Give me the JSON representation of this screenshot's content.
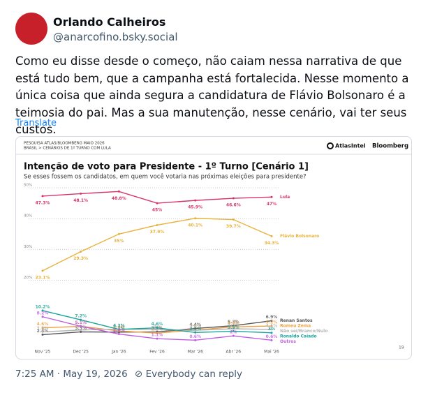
{
  "post": {
    "author": "Orlando Calheiros",
    "handle": "@anarcofino.bsky.social",
    "text": "Como eu disse desde o começo, não caiam nessa narrativa de que está tudo bem, que a campanha está fortalecida. Nesse momento a única coisa que ainda segura a candidatura de Flávio Bolsonaro é a teimosia do pai. Mas a sua manutenção, nesse cenário, vai ter seus custos.",
    "translate": "Translate",
    "timestamp": "7:25 AM · May 19, 2026",
    "reply_setting": "Everybody can reply"
  },
  "card": {
    "kicker": "PESQUISA ATLAS/BLOOMBERG MAIO 2026",
    "breadcrumb": "BRASIL > CENÁRIOS DE 1º TURNO COM LULA",
    "brand_1": "AtlasIntel",
    "brand_2": "Bloomberg",
    "page_number": "19"
  },
  "chart_data": {
    "type": "line",
    "title": "Intenção de voto para Presidente - 1º Turno [Cenário 1]",
    "subtitle": "Se esses fossem os candidatos, em quem você votaria nas próximas eleições para presidente?",
    "categories": [
      "Nov '25",
      "Dez '25",
      "Jan '26",
      "Fev '26",
      "Mar '26",
      "Abr '26",
      "Mai '26"
    ],
    "ylim": [
      0,
      50
    ],
    "yticks": [
      {
        "value": 20,
        "label": "20%"
      },
      {
        "value": 30,
        "label": "30%"
      },
      {
        "value": 40,
        "label": "40%"
      },
      {
        "value": 50,
        "label": "50%"
      }
    ],
    "grid": true,
    "series": [
      {
        "name": "Lula",
        "color": "#d6336c",
        "values": [
          47.3,
          48.1,
          48.8,
          45,
          45.9,
          46.6,
          47
        ],
        "value_labels": [
          "47.3%",
          "48.1%",
          "48.8%",
          "45%",
          "45.9%",
          "46.6%",
          "47%"
        ]
      },
      {
        "name": "Flávio Bolsonaro",
        "color": "#e8b23a",
        "values": [
          23.1,
          29.3,
          35,
          37.9,
          40.1,
          39.7,
          34.3
        ],
        "value_labels": [
          "23.1%",
          "29.3%",
          "35%",
          "37.9%",
          "40.1%",
          "39.7%",
          "34.3%"
        ]
      },
      {
        "name": "Renan Santos",
        "color": "#555555",
        "values": [
          2.4,
          3.3,
          3.2,
          3.3,
          4.4,
          5.3,
          6.9
        ],
        "value_labels": [
          "2.4%",
          "3.3%",
          "3.2%",
          "3.3%",
          "4.4%",
          "5.3%",
          "6.9%"
        ]
      },
      {
        "name": "Romeu Zema",
        "color": "#f0a040",
        "values": [
          4.6,
          5.1,
          3.6,
          2.9,
          3.9,
          4.9,
          5.2
        ],
        "value_labels": [
          "4.6%",
          "5.1%",
          "3.6%",
          "2.9%",
          "3.9%",
          "4.9%",
          "5.2%"
        ]
      },
      {
        "name": "Não sei/Branco/Nulo",
        "color": "#b5b5b5",
        "values": [
          3.3,
          3.9,
          4.2,
          4.0,
          3.8,
          4.3,
          4.1
        ],
        "value_labels": [
          "3.3%",
          "3.9%",
          "4.2%",
          "4%",
          "3.8%",
          "4.3%",
          "4.1%"
        ]
      },
      {
        "name": "Ronaldo Caiado",
        "color": "#1aa39a",
        "values": [
          10.2,
          7.2,
          4.1,
          4.6,
          3.1,
          3.5,
          3.0
        ],
        "value_labels": [
          "10.2%",
          "7.2%",
          "4.1%",
          "4.6%",
          "3.1%",
          "3.5%",
          "3%"
        ]
      },
      {
        "name": "Outros",
        "color": "#c05ee0",
        "values": [
          8.2,
          5.1,
          2.6,
          1.1,
          0.6,
          2.0,
          0.6
        ],
        "value_labels": [
          "8.2%",
          "5.1%",
          "2.6%",
          "1.1%",
          "0.6%",
          "2%",
          "0.6%"
        ]
      }
    ]
  }
}
